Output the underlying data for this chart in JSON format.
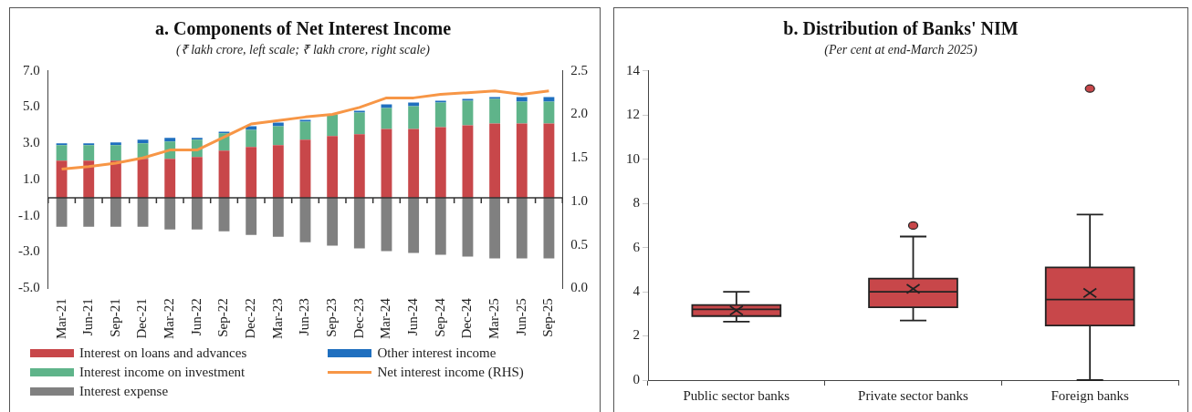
{
  "chart_data": [
    {
      "type": "bar",
      "title": "a. Components of Net Interest Income",
      "subtitle": "(₹ lakh crore, left scale; ₹ lakh crore, right scale)",
      "categories": [
        "Mar-21",
        "Jun-21",
        "Sep-21",
        "Dec-21",
        "Mar-22",
        "Jun-22",
        "Sep-22",
        "Dec-22",
        "Mar-23",
        "Jun-23",
        "Sep-23",
        "Dec-23",
        "Mar-24",
        "Jun-24",
        "Sep-24",
        "Dec-24",
        "Mar-25",
        "Jun-25",
        "Sep-25"
      ],
      "stacked": true,
      "series": [
        {
          "name": "Interest on loans and advances",
          "color": "#c8474a",
          "values": [
            2.05,
            2.05,
            2.05,
            2.15,
            2.15,
            2.25,
            2.6,
            2.8,
            2.9,
            3.2,
            3.4,
            3.5,
            3.8,
            3.8,
            3.9,
            4.0,
            4.1,
            4.1,
            4.1
          ]
        },
        {
          "name": "Interest income on investment",
          "color": "#5fb48a",
          "values": [
            0.85,
            0.85,
            0.85,
            0.85,
            0.95,
            0.95,
            0.95,
            0.95,
            1.05,
            1.0,
            1.2,
            1.2,
            1.15,
            1.25,
            1.35,
            1.35,
            1.35,
            1.2,
            1.2
          ]
        },
        {
          "name": "Interest expense",
          "color": "#808080",
          "values": [
            -1.6,
            -1.6,
            -1.6,
            -1.6,
            -1.75,
            -1.75,
            -1.85,
            -2.05,
            -2.15,
            -2.45,
            -2.65,
            -2.8,
            -2.95,
            -3.05,
            -3.15,
            -3.25,
            -3.35,
            -3.35,
            -3.35
          ]
        },
        {
          "name": "Other interest income",
          "color": "#1f6fbf",
          "values": [
            0.1,
            0.1,
            0.15,
            0.2,
            0.2,
            0.1,
            0.1,
            0.2,
            0.2,
            0.1,
            null,
            0.1,
            0.2,
            0.2,
            0.1,
            0.1,
            0.1,
            0.25,
            0.25
          ]
        },
        {
          "name": "Net interest income (RHS)",
          "type": "line",
          "axis": "y2",
          "color": "#f79646",
          "values": [
            1.37,
            1.4,
            1.44,
            1.5,
            1.59,
            1.59,
            1.74,
            1.89,
            1.93,
            1.97,
            2.0,
            2.08,
            2.19,
            2.19,
            2.23,
            2.25,
            2.27,
            2.23,
            2.27
          ]
        }
      ],
      "ylim": [
        -5,
        7
      ],
      "yticks": [
        {
          "value": -5,
          "label": "-5.0"
        },
        {
          "value": -3,
          "label": "-3.0"
        },
        {
          "value": -1,
          "label": "-1.0"
        },
        {
          "value": 1,
          "label": "1.0"
        },
        {
          "value": 3,
          "label": "3.0"
        },
        {
          "value": 5,
          "label": "5.0"
        },
        {
          "value": 7,
          "label": "7.0"
        }
      ],
      "y2lim": [
        0,
        2.5
      ],
      "y2ticks": [
        {
          "value": 0,
          "label": "0.0"
        },
        {
          "value": 0.5,
          "label": "0.5"
        },
        {
          "value": 1,
          "label": "1.0"
        },
        {
          "value": 1.5,
          "label": "1.5"
        },
        {
          "value": 2,
          "label": "2.0"
        },
        {
          "value": 2.5,
          "label": "2.5"
        }
      ],
      "legend": "bottom"
    },
    {
      "type": "box",
      "title": "b. Distribution of Banks' NIM",
      "subtitle": "(Per cent at end-March 2025)",
      "categories": [
        "Public sector banks",
        "Private sector banks",
        "Foreign banks"
      ],
      "series": [
        {
          "color": "#c8474a",
          "boxes": [
            {
              "low": 2.65,
              "q1": 2.9,
              "median": 3.2,
              "q3": 3.4,
              "high": 4.0,
              "mean": 3.15
            },
            {
              "low": 2.7,
              "q1": 3.3,
              "median": 4.0,
              "q3": 4.6,
              "high": 6.5,
              "mean": 4.13,
              "outliers": [
                7.0
              ]
            },
            {
              "low": 0,
              "q1": 2.47,
              "median": 3.65,
              "q3": 5.1,
              "high": 7.5,
              "mean": 3.95,
              "outliers": [
                13.2
              ]
            }
          ]
        }
      ],
      "ylim": [
        0,
        14
      ],
      "yticks": [
        0,
        2,
        4,
        6,
        8,
        10,
        12,
        14
      ]
    }
  ]
}
